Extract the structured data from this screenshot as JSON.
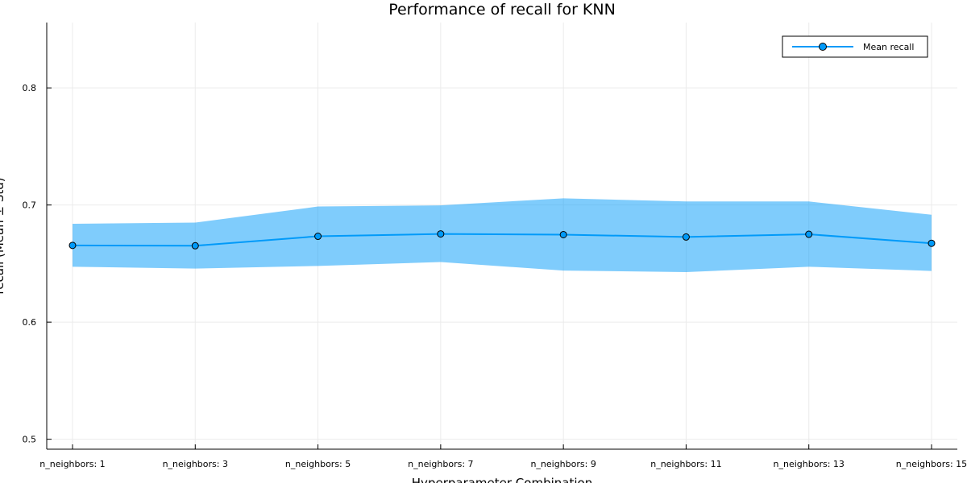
{
  "chart_data": {
    "type": "line",
    "title": "Performance of recall for KNN",
    "xlabel": "Hyperparameter Combination",
    "ylabel": "recall (Mean ± Std)",
    "categories": [
      "n_neighbors: 1",
      "n_neighbors: 3",
      "n_neighbors: 5",
      "n_neighbors: 7",
      "n_neighbors: 9",
      "n_neighbors: 11",
      "n_neighbors: 13",
      "n_neighbors: 15"
    ],
    "series": [
      {
        "name": "Mean recall",
        "values": [
          0.6655,
          0.6652,
          0.6733,
          0.6753,
          0.6747,
          0.6727,
          0.675,
          0.6673
        ],
        "upper": [
          0.684,
          0.685,
          0.6987,
          0.6997,
          0.7057,
          0.703,
          0.703,
          0.6917
        ],
        "lower": [
          0.6473,
          0.6457,
          0.648,
          0.6513,
          0.644,
          0.6427,
          0.6473,
          0.6437
        ],
        "color": "#009af9"
      }
    ],
    "ylim": [
      0.4915,
      0.8558
    ],
    "yticks": [
      0.5,
      0.6,
      0.7,
      0.8
    ],
    "grid": true,
    "legend_position": "top-right",
    "band_color": "#009af9",
    "band_opacity": 0.5
  }
}
